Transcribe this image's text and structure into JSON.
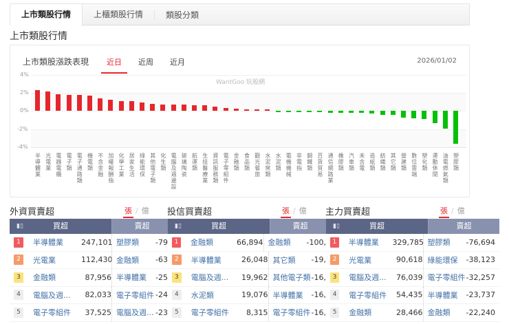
{
  "tabs": [
    {
      "label": "上市類股行情",
      "active": true
    },
    {
      "label": "上櫃類股行情",
      "active": false
    },
    {
      "label": "類股分類",
      "active": false
    }
  ],
  "page_title": "上市類股行情",
  "chart_card": {
    "title": "上市類股漲跌表現",
    "periods": [
      {
        "label": "近日",
        "active": true
      },
      {
        "label": "近周",
        "active": false
      },
      {
        "label": "近月",
        "active": false
      }
    ],
    "date": "2026/01/02",
    "watermark": "WantGoo 玩股網",
    "up_color": "#e5262c",
    "down_color": "#06c006"
  },
  "chart_data": {
    "type": "bar",
    "title": "上市類股漲跌表現",
    "xlabel": "",
    "ylabel": "",
    "ylim": [
      -4,
      4
    ],
    "yticks": [
      "4%",
      "2%",
      "0%",
      "-2%",
      "-4%"
    ],
    "grid": true,
    "legend": "none",
    "categories": [
      "半導體業",
      "光電業",
      "電器電纜",
      "電子類",
      "電子通路類",
      "機電類",
      "不含金融",
      "加權報酬指",
      "化學工業",
      "居家生活",
      "綠能環保",
      "其他電子類",
      "化生類",
      "電腦及週邊設",
      "玻璃陶瓷",
      "航運類",
      "生技醫療業",
      "資訊服務類",
      "電子零組件",
      "金融類",
      "食品類",
      "觀光餐旅",
      "水泥窯類",
      "水泥類",
      "電機機械",
      "非電指",
      "鋼鐵類",
      "百貨貿易",
      "通信網路業",
      "橡膠類",
      "汽車類",
      "未含電",
      "造紙類",
      "紡織類",
      "其它類",
      "營建類",
      "數位雲端",
      "塑化類",
      "運動休閒",
      "油電燃氣類",
      "塑膠類"
    ],
    "values": [
      2.3,
      2.15,
      1.85,
      1.75,
      1.75,
      1.7,
      1.4,
      1.2,
      1.05,
      1.05,
      0.9,
      0.75,
      0.7,
      0.68,
      0.7,
      0.6,
      0.58,
      0.45,
      0.3,
      0.2,
      0.18,
      0.15,
      0.12,
      -0.05,
      -0.08,
      -0.1,
      -0.12,
      -0.18,
      -0.2,
      -0.2,
      -0.22,
      -0.25,
      -0.3,
      -0.45,
      -0.45,
      -0.75,
      -0.85,
      -0.9,
      -1.4,
      -2.0,
      -3.6
    ]
  },
  "flows": [
    {
      "title": "外資買賣超",
      "unit_on": "張",
      "unit_off": "億",
      "buy_header": "買超",
      "sell_header": "賣超",
      "rows": [
        {
          "rank": "1",
          "buy_name": "半導體業",
          "buy_val": "247,101",
          "sell_name": "塑膠類",
          "sell_val": "-79"
        },
        {
          "rank": "2",
          "buy_name": "光電業",
          "buy_val": "112,430",
          "sell_name": "金融類",
          "sell_val": "-63"
        },
        {
          "rank": "3",
          "buy_name": "金融類",
          "buy_val": "87,956",
          "sell_name": "半導體業",
          "sell_val": "-25"
        },
        {
          "rank": "4",
          "buy_name": "電腦及週...",
          "buy_val": "82,033",
          "sell_name": "電子零組件",
          "sell_val": "-24"
        },
        {
          "rank": "5",
          "buy_name": "電子零組件",
          "buy_val": "37,525",
          "sell_name": "電腦及週...",
          "sell_val": "-23"
        }
      ]
    },
    {
      "title": "投信買賣超",
      "unit_on": "張",
      "unit_off": "億",
      "buy_header": "買超",
      "sell_header": "賣超",
      "rows": [
        {
          "rank": "1",
          "buy_name": "金融類",
          "buy_val": "66,894",
          "sell_name": "金融類",
          "sell_val": "-100,"
        },
        {
          "rank": "2",
          "buy_name": "半導體業",
          "buy_val": "26,048",
          "sell_name": "其它類",
          "sell_val": "-19,"
        },
        {
          "rank": "3",
          "buy_name": "電腦及週...",
          "buy_val": "19,962",
          "sell_name": "其他電子類",
          "sell_val": "-16,"
        },
        {
          "rank": "4",
          "buy_name": "水泥類",
          "buy_val": "19,076",
          "sell_name": "半導體業",
          "sell_val": "-16,"
        },
        {
          "rank": "5",
          "buy_name": "電子零組件",
          "buy_val": "8,315",
          "sell_name": "電子零組件",
          "sell_val": "-16,"
        }
      ]
    },
    {
      "title": "主力買賣超",
      "unit_on": "張",
      "unit_off": "億",
      "buy_header": "買超",
      "sell_header": "賣超",
      "rows": [
        {
          "rank": "1",
          "buy_name": "半導體業",
          "buy_val": "329,785",
          "sell_name": "塑膠類",
          "sell_val": "-76,694"
        },
        {
          "rank": "2",
          "buy_name": "光電業",
          "buy_val": "90,618",
          "sell_name": "綠能環保",
          "sell_val": "-38,123"
        },
        {
          "rank": "3",
          "buy_name": "電腦及週...",
          "buy_val": "76,039",
          "sell_name": "電子零組件",
          "sell_val": "-32,257"
        },
        {
          "rank": "4",
          "buy_name": "電子零組件",
          "buy_val": "54,435",
          "sell_name": "半導體業",
          "sell_val": "-23,737"
        },
        {
          "rank": "5",
          "buy_name": "金融類",
          "buy_val": "28,466",
          "sell_name": "金融類",
          "sell_val": "-22,240"
        }
      ]
    }
  ]
}
